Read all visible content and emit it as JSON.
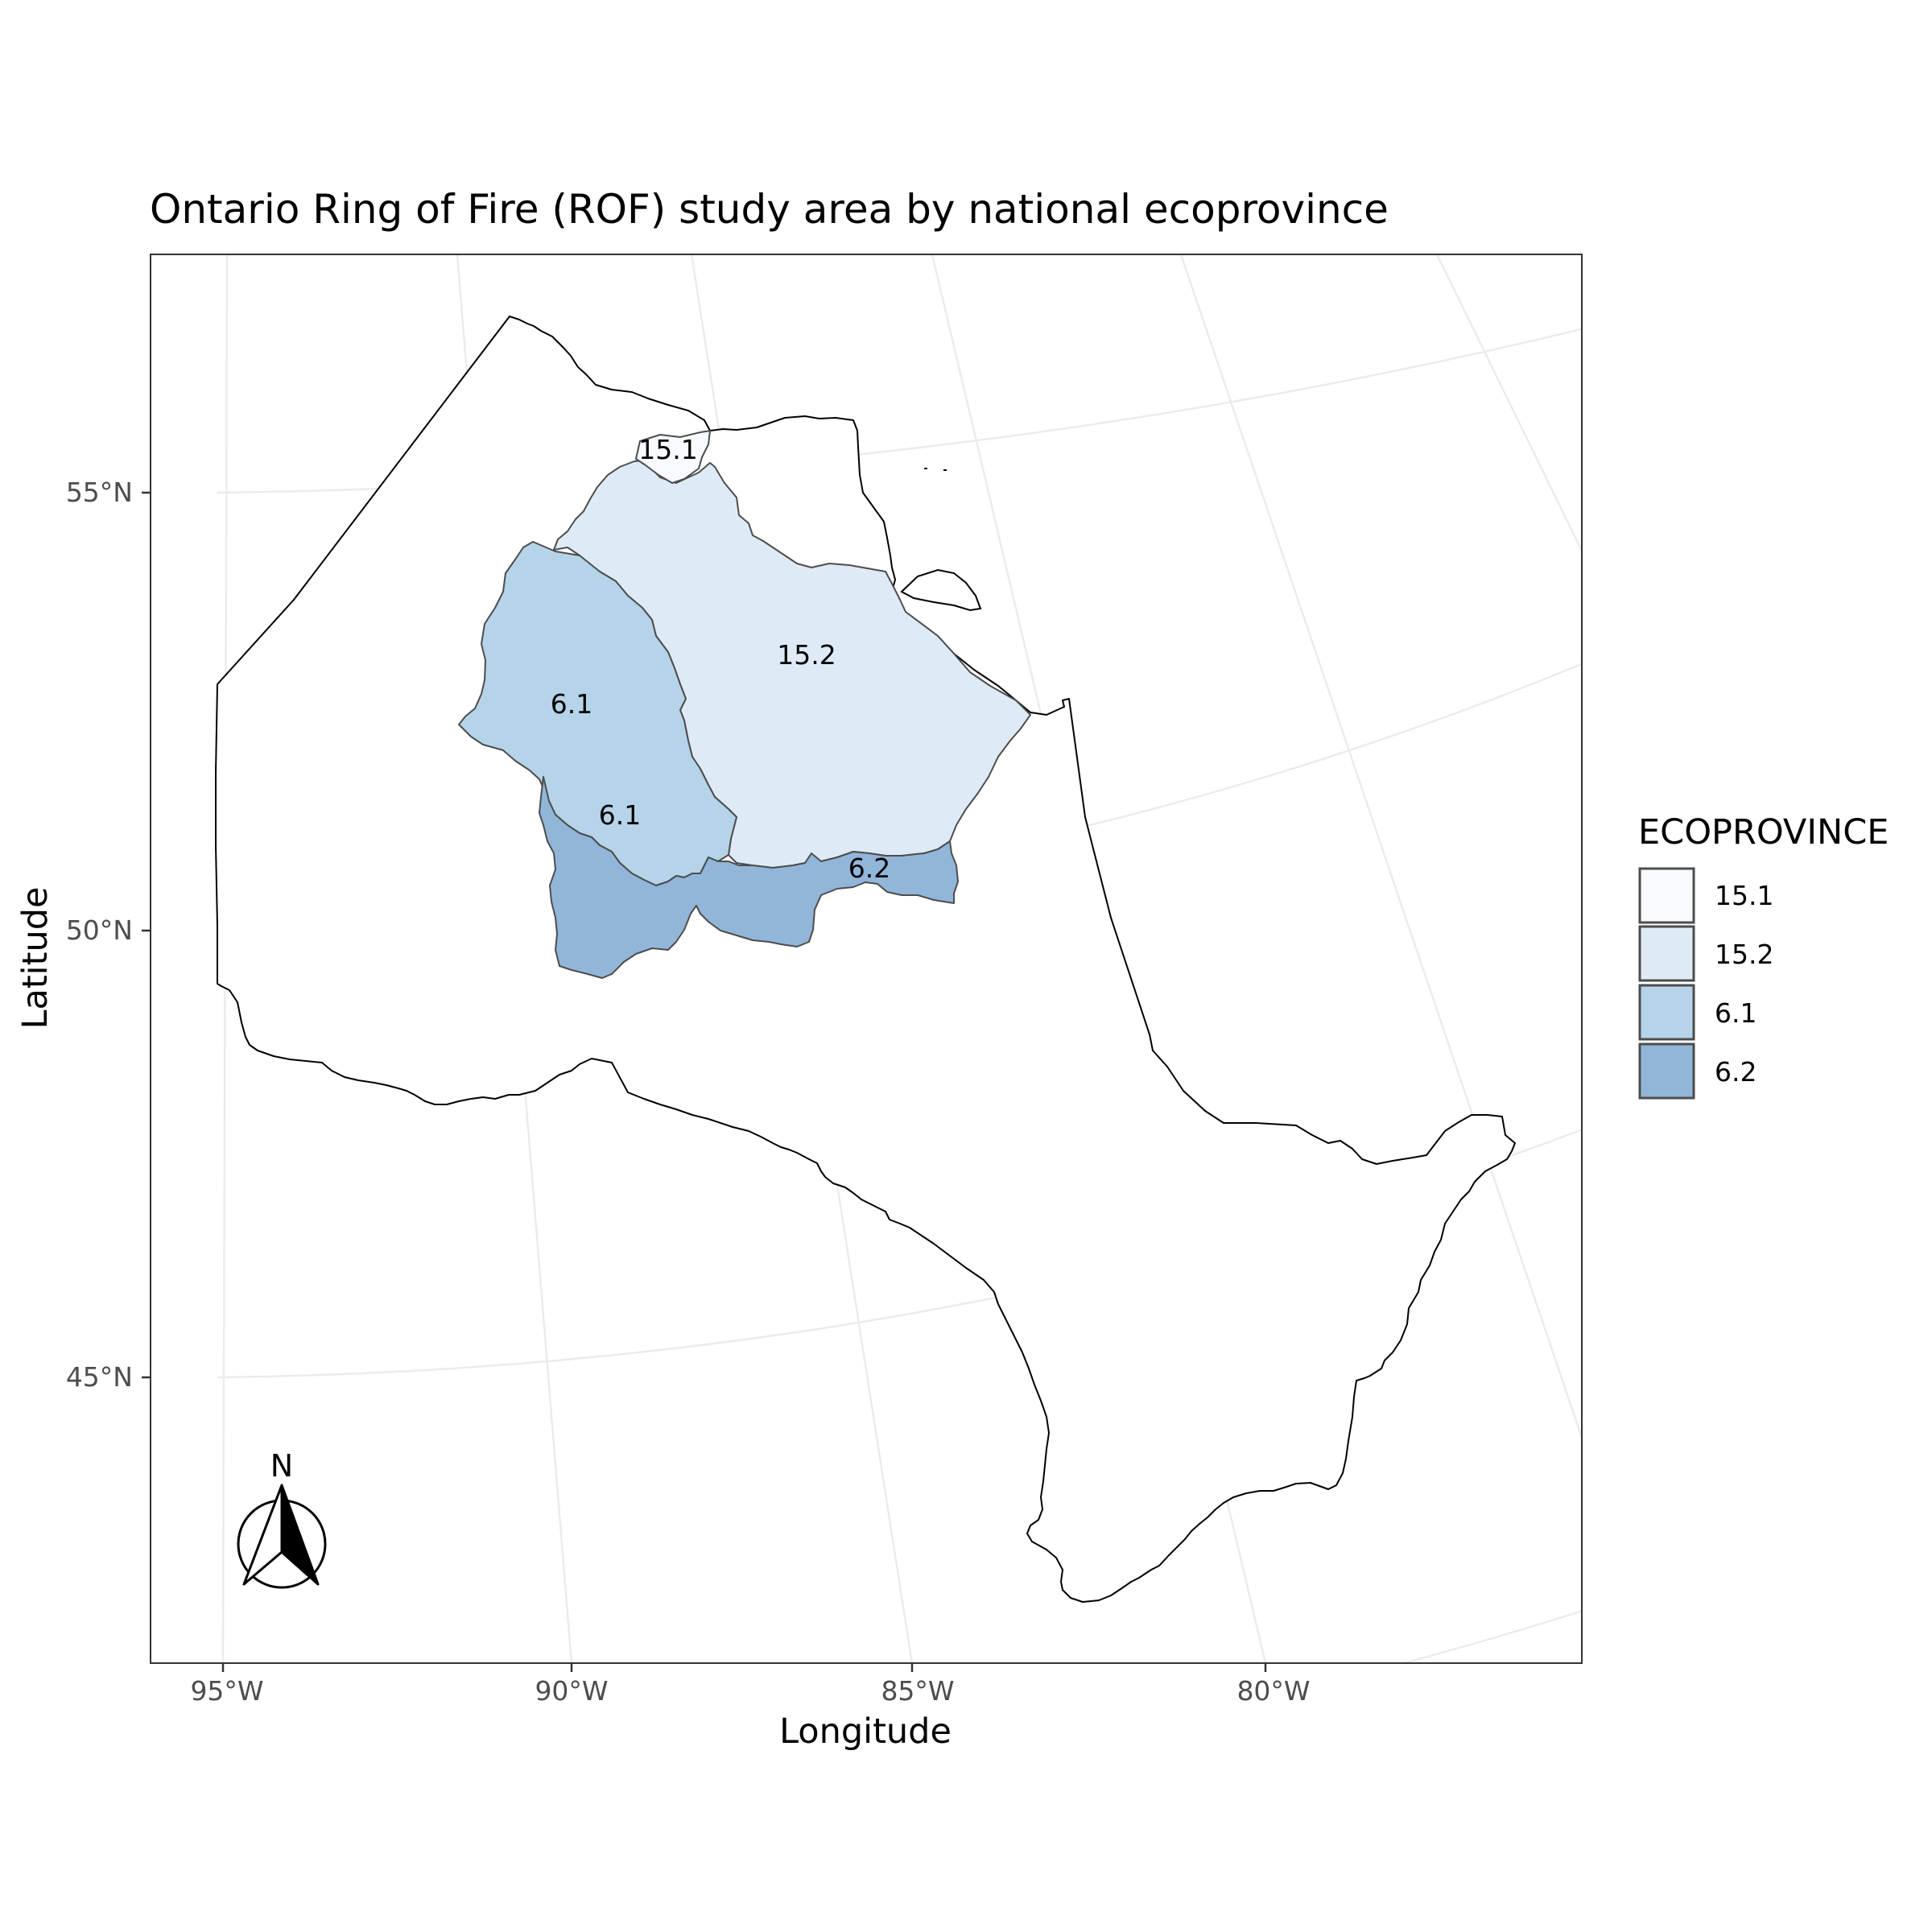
{
  "map": {
    "title": "Ontario Ring of Fire (ROF) study area by national ecoprovince",
    "x_axis_title": "Longitude",
    "y_axis_title": "Latitude",
    "x_ticks": [
      "95°W",
      "90°W",
      "85°W",
      "80°W"
    ],
    "y_ticks": [
      "55°N",
      "50°N",
      "45°N"
    ],
    "north_arrow_label": "N"
  },
  "regions": [
    {
      "id": "15.1",
      "label": "15.1"
    },
    {
      "id": "15.2",
      "label": "15.2"
    },
    {
      "id": "6.1-north",
      "label": "6.1"
    },
    {
      "id": "6.1-south",
      "label": "6.1"
    },
    {
      "id": "6.2",
      "label": "6.2"
    }
  ],
  "legend": {
    "title": "ECOPROVINCE",
    "items": [
      {
        "label": "15.1",
        "color": "#f7fbff"
      },
      {
        "label": "15.2",
        "color": "#deebf7"
      },
      {
        "label": "6.1",
        "color": "#b5d4e9"
      },
      {
        "label": "6.2",
        "color": "#91b6d9"
      }
    ]
  },
  "colors": {
    "background": "#ffffff",
    "grid": "#ebebeb",
    "outline": "#000000",
    "eco_border": "#4d4d4d"
  }
}
